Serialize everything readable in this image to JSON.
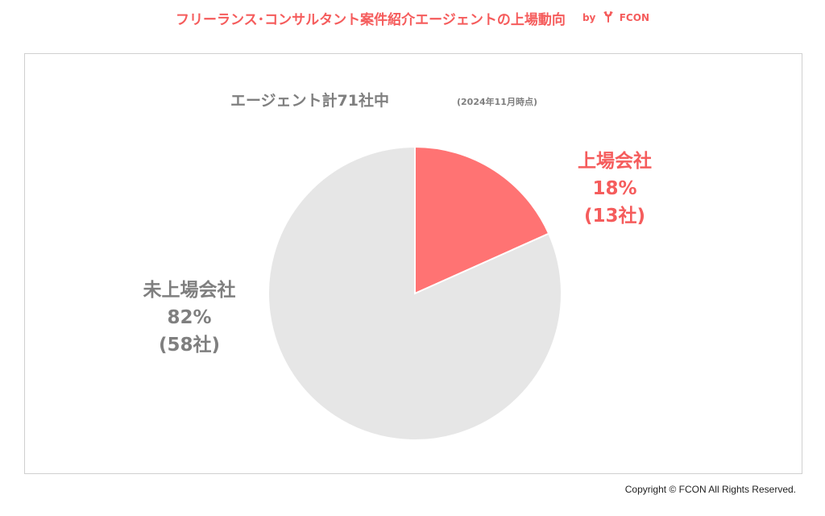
{
  "header": {
    "title": "フリーランス･コンサルタント案件紹介エージェントの上場動向",
    "by_label": "by",
    "brand": "FCON",
    "logo_icon": "fork-leaf-icon"
  },
  "colors": {
    "accent": "#f55c5c",
    "listed": "#ff7373",
    "unlisted": "#e6e6e6",
    "label_gray": "#7f7f7f"
  },
  "chart_data": {
    "type": "pie",
    "title": "エージェント計71社中",
    "subtitle": "(2024年11月時点)",
    "slices": [
      {
        "label": "上場会社",
        "percent_label": "18%",
        "count_label": "(13社)",
        "value": 13,
        "color": "#ff7373"
      },
      {
        "label": "未上場会社",
        "percent_label": "82%",
        "count_label": "(58社)",
        "value": 58,
        "color": "#e6e6e6"
      }
    ],
    "total": 71
  },
  "footer": {
    "copyright": "Copyright © FCON All Rights Reserved."
  }
}
